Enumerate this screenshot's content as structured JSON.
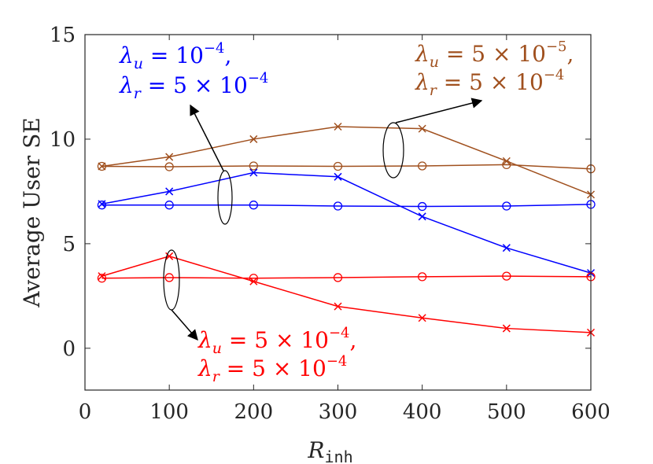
{
  "chart_data": {
    "type": "line",
    "xlabel": "R",
    "xlabel_sub": "inh",
    "ylabel": "Average User SE",
    "xlim": [
      0,
      600
    ],
    "ylim": [
      -2,
      15
    ],
    "xticks": [
      0,
      100,
      200,
      300,
      400,
      500,
      600
    ],
    "yticks": [
      0,
      5,
      10,
      15
    ],
    "grid": false,
    "x": [
      20,
      100,
      200,
      300,
      400,
      500,
      600
    ],
    "series": [
      {
        "group": "brown",
        "color": "#a0501e",
        "marker": "x",
        "values": [
          8.7,
          9.15,
          10.0,
          10.6,
          10.5,
          8.95,
          7.35
        ]
      },
      {
        "group": "brown",
        "color": "#a0501e",
        "marker": "o",
        "values": [
          8.7,
          8.68,
          8.72,
          8.7,
          8.72,
          8.78,
          8.58
        ]
      },
      {
        "group": "blue",
        "color": "#0000ff",
        "marker": "x",
        "values": [
          6.9,
          7.5,
          8.4,
          8.2,
          6.3,
          4.8,
          3.6
        ]
      },
      {
        "group": "blue",
        "color": "#0000ff",
        "marker": "o",
        "values": [
          6.85,
          6.85,
          6.85,
          6.8,
          6.78,
          6.8,
          6.88
        ]
      },
      {
        "group": "red",
        "color": "#ff0000",
        "marker": "x",
        "values": [
          3.45,
          4.4,
          3.2,
          2.0,
          1.45,
          0.95,
          0.75
        ]
      },
      {
        "group": "red",
        "color": "#ff0000",
        "marker": "o",
        "values": [
          3.35,
          3.38,
          3.35,
          3.38,
          3.42,
          3.45,
          3.42
        ]
      }
    ],
    "annotations": [
      {
        "group": "blue",
        "color": "#0000ff",
        "line1": {
          "sym": "λ",
          "sub": "u",
          "text": " = 10",
          "sup": "−4",
          "tail": ","
        },
        "line2": {
          "sym": "λ",
          "sub": "r",
          "text": " = 5 × 10",
          "sup": "−4",
          "tail": ""
        }
      },
      {
        "group": "brown",
        "color": "#a0501e",
        "line1": {
          "sym": "λ",
          "sub": "u",
          "text": " = 5 × 10",
          "sup": "−5",
          "tail": ","
        },
        "line2": {
          "sym": "λ",
          "sub": "r",
          "text": " = 5 × 10",
          "sup": "−4",
          "tail": ""
        }
      },
      {
        "group": "red",
        "color": "#ff0000",
        "line1": {
          "sym": "λ",
          "sub": "u",
          "text": " = 5 × 10",
          "sup": "−4",
          "tail": ","
        },
        "line2": {
          "sym": "λ",
          "sub": "r",
          "text": " = 5 × 10",
          "sup": "−4",
          "tail": ""
        }
      }
    ]
  }
}
